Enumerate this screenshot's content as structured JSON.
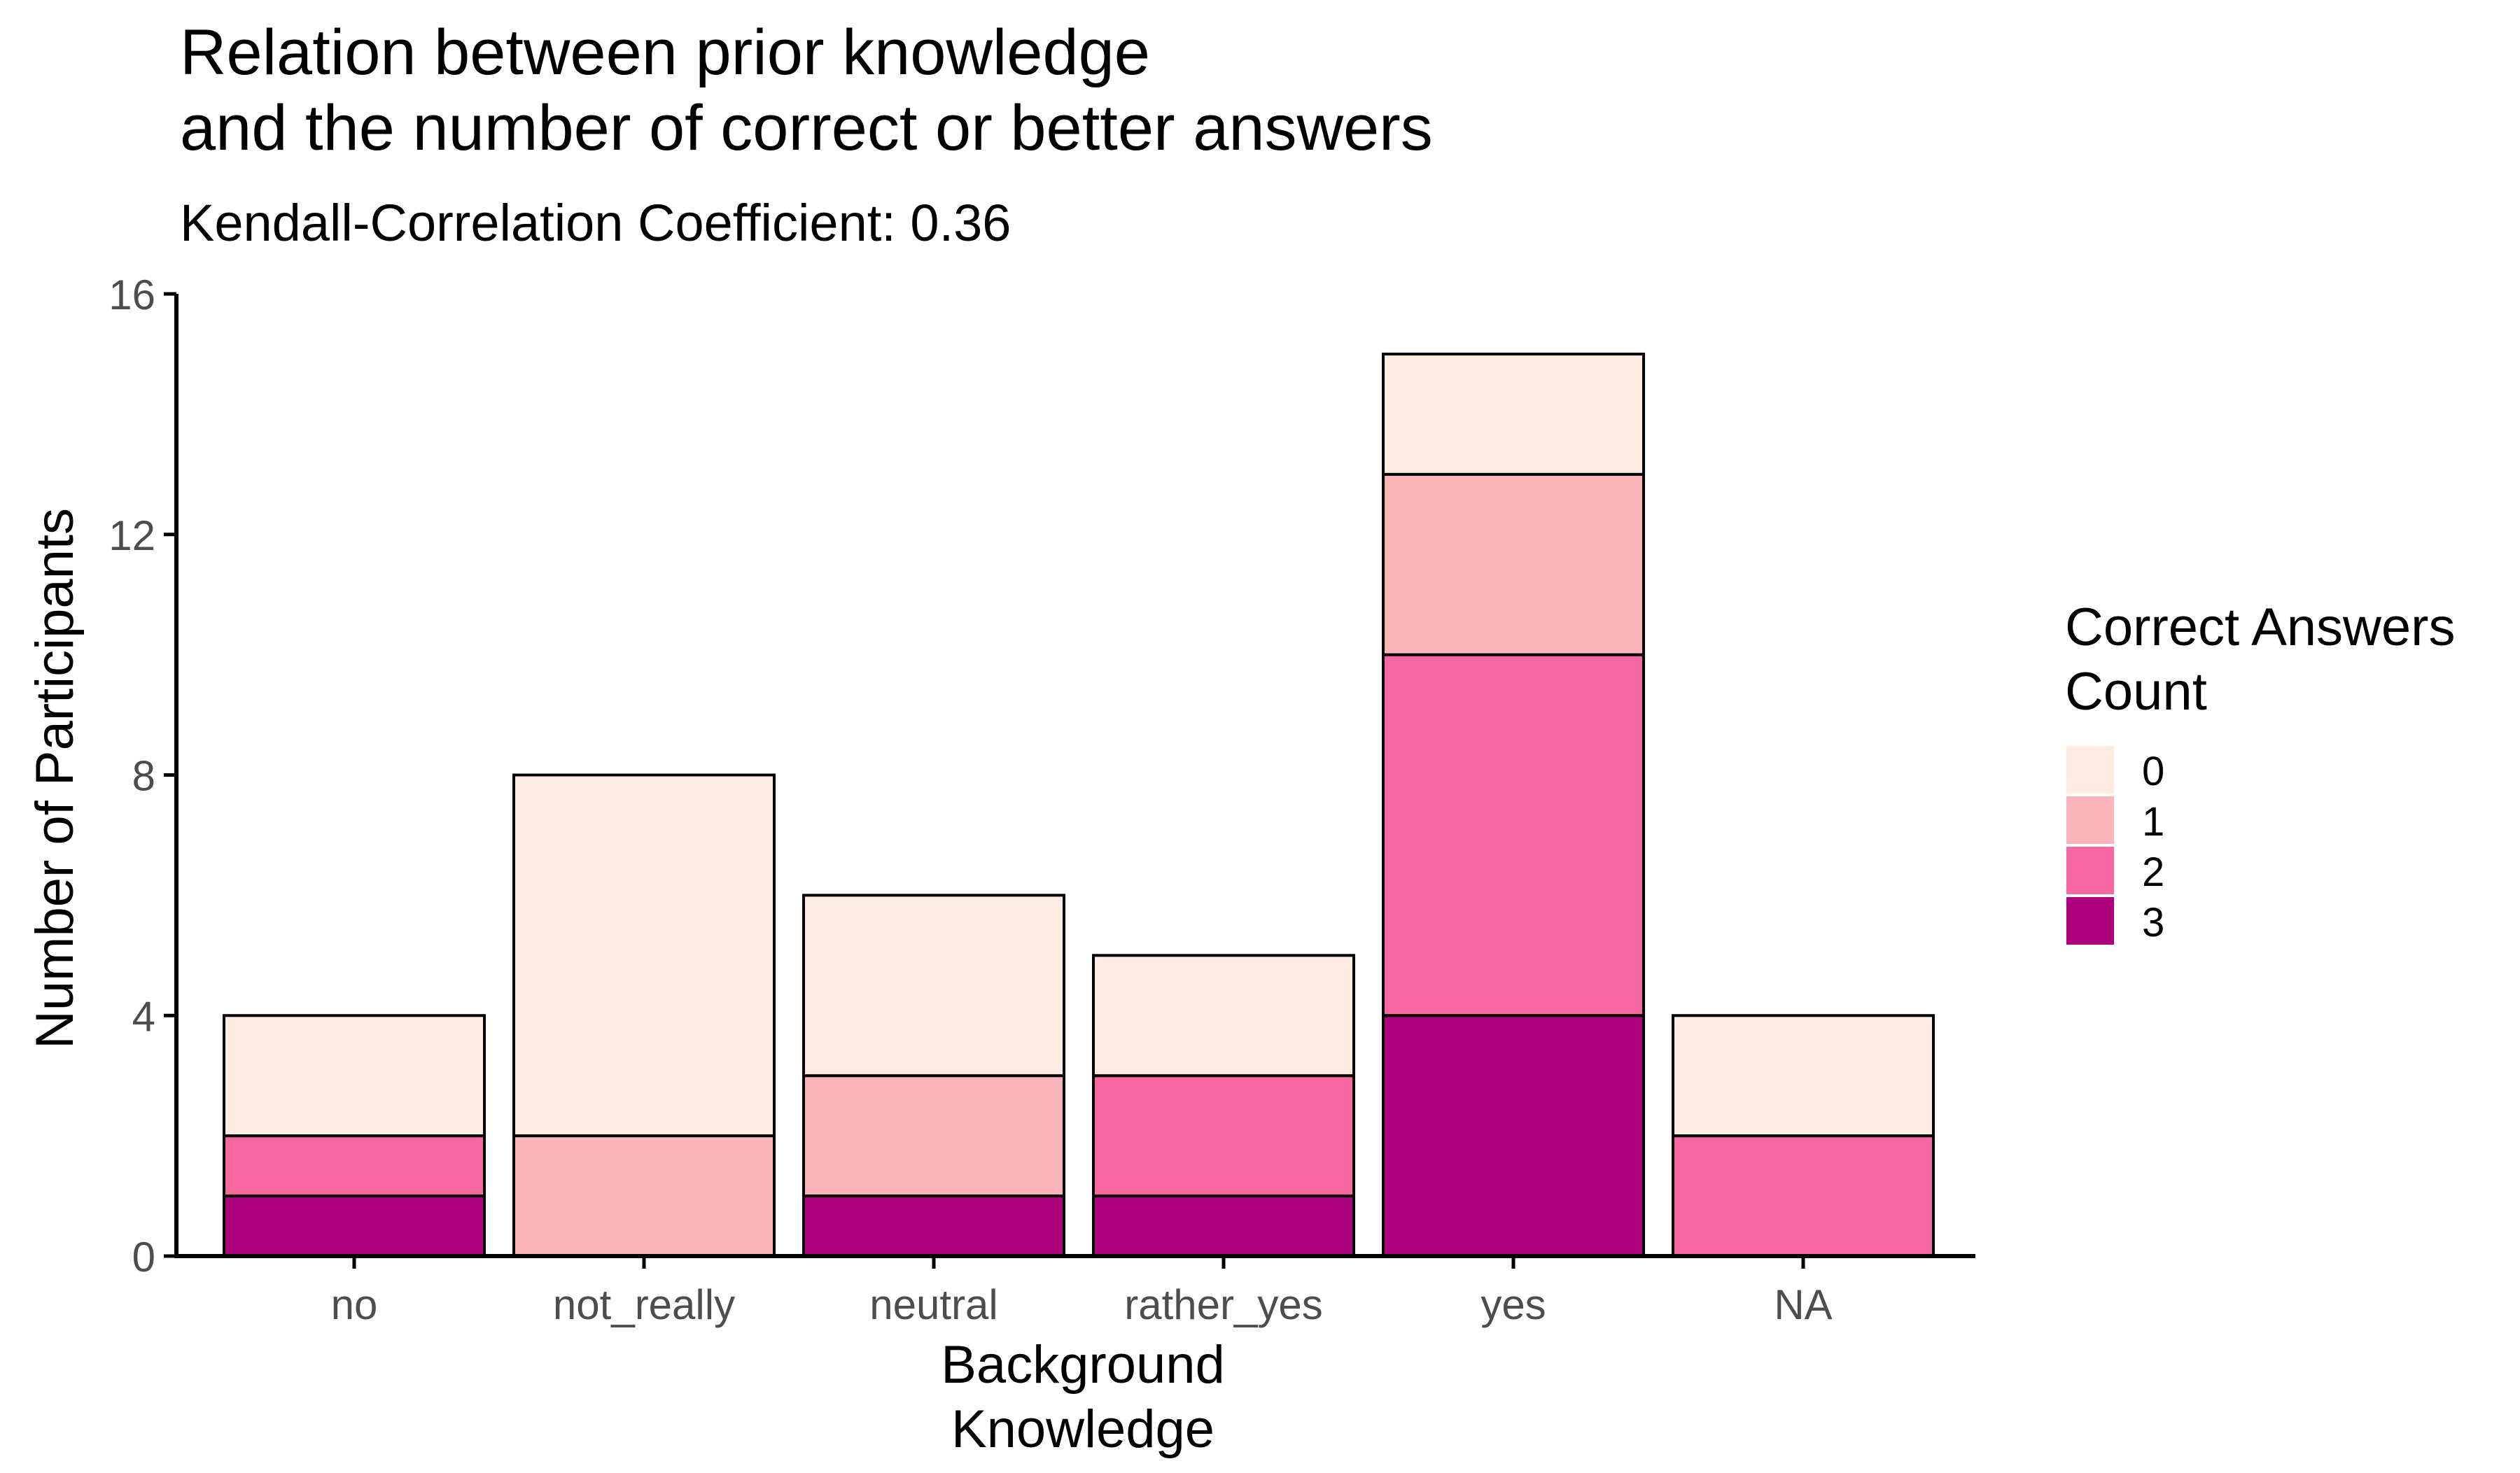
{
  "chart_data": {
    "type": "bar",
    "stacked": true,
    "title_lines": [
      "Relation between prior knowledge",
      "and the number of correct or better answers"
    ],
    "subtitle": "Kendall-Correlation Coefficient: 0.36",
    "xlabel_lines": [
      "Background",
      "Knowledge"
    ],
    "ylabel": "Number of Participants",
    "ylim": [
      0,
      16
    ],
    "yticks": [
      "0",
      "4",
      "8",
      "12",
      "16"
    ],
    "categories": [
      "no",
      "not_really",
      "neutral",
      "rather_yes",
      "yes",
      "NA"
    ],
    "legend": {
      "title_lines": [
        "Correct Answers",
        "Count"
      ],
      "position": "right"
    },
    "series": [
      {
        "name": "3",
        "color": "#AE017E",
        "values": [
          1,
          0,
          1,
          1,
          4,
          0
        ]
      },
      {
        "name": "2",
        "color": "#F768A1",
        "values": [
          1,
          0,
          0,
          2,
          6,
          2
        ]
      },
      {
        "name": "1",
        "color": "#FBB4B9",
        "values": [
          0,
          2,
          2,
          0,
          3,
          0
        ]
      },
      {
        "name": "0",
        "color": "#FEEBE2",
        "values": [
          2,
          6,
          3,
          2,
          2,
          2
        ]
      }
    ],
    "grid": false
  }
}
